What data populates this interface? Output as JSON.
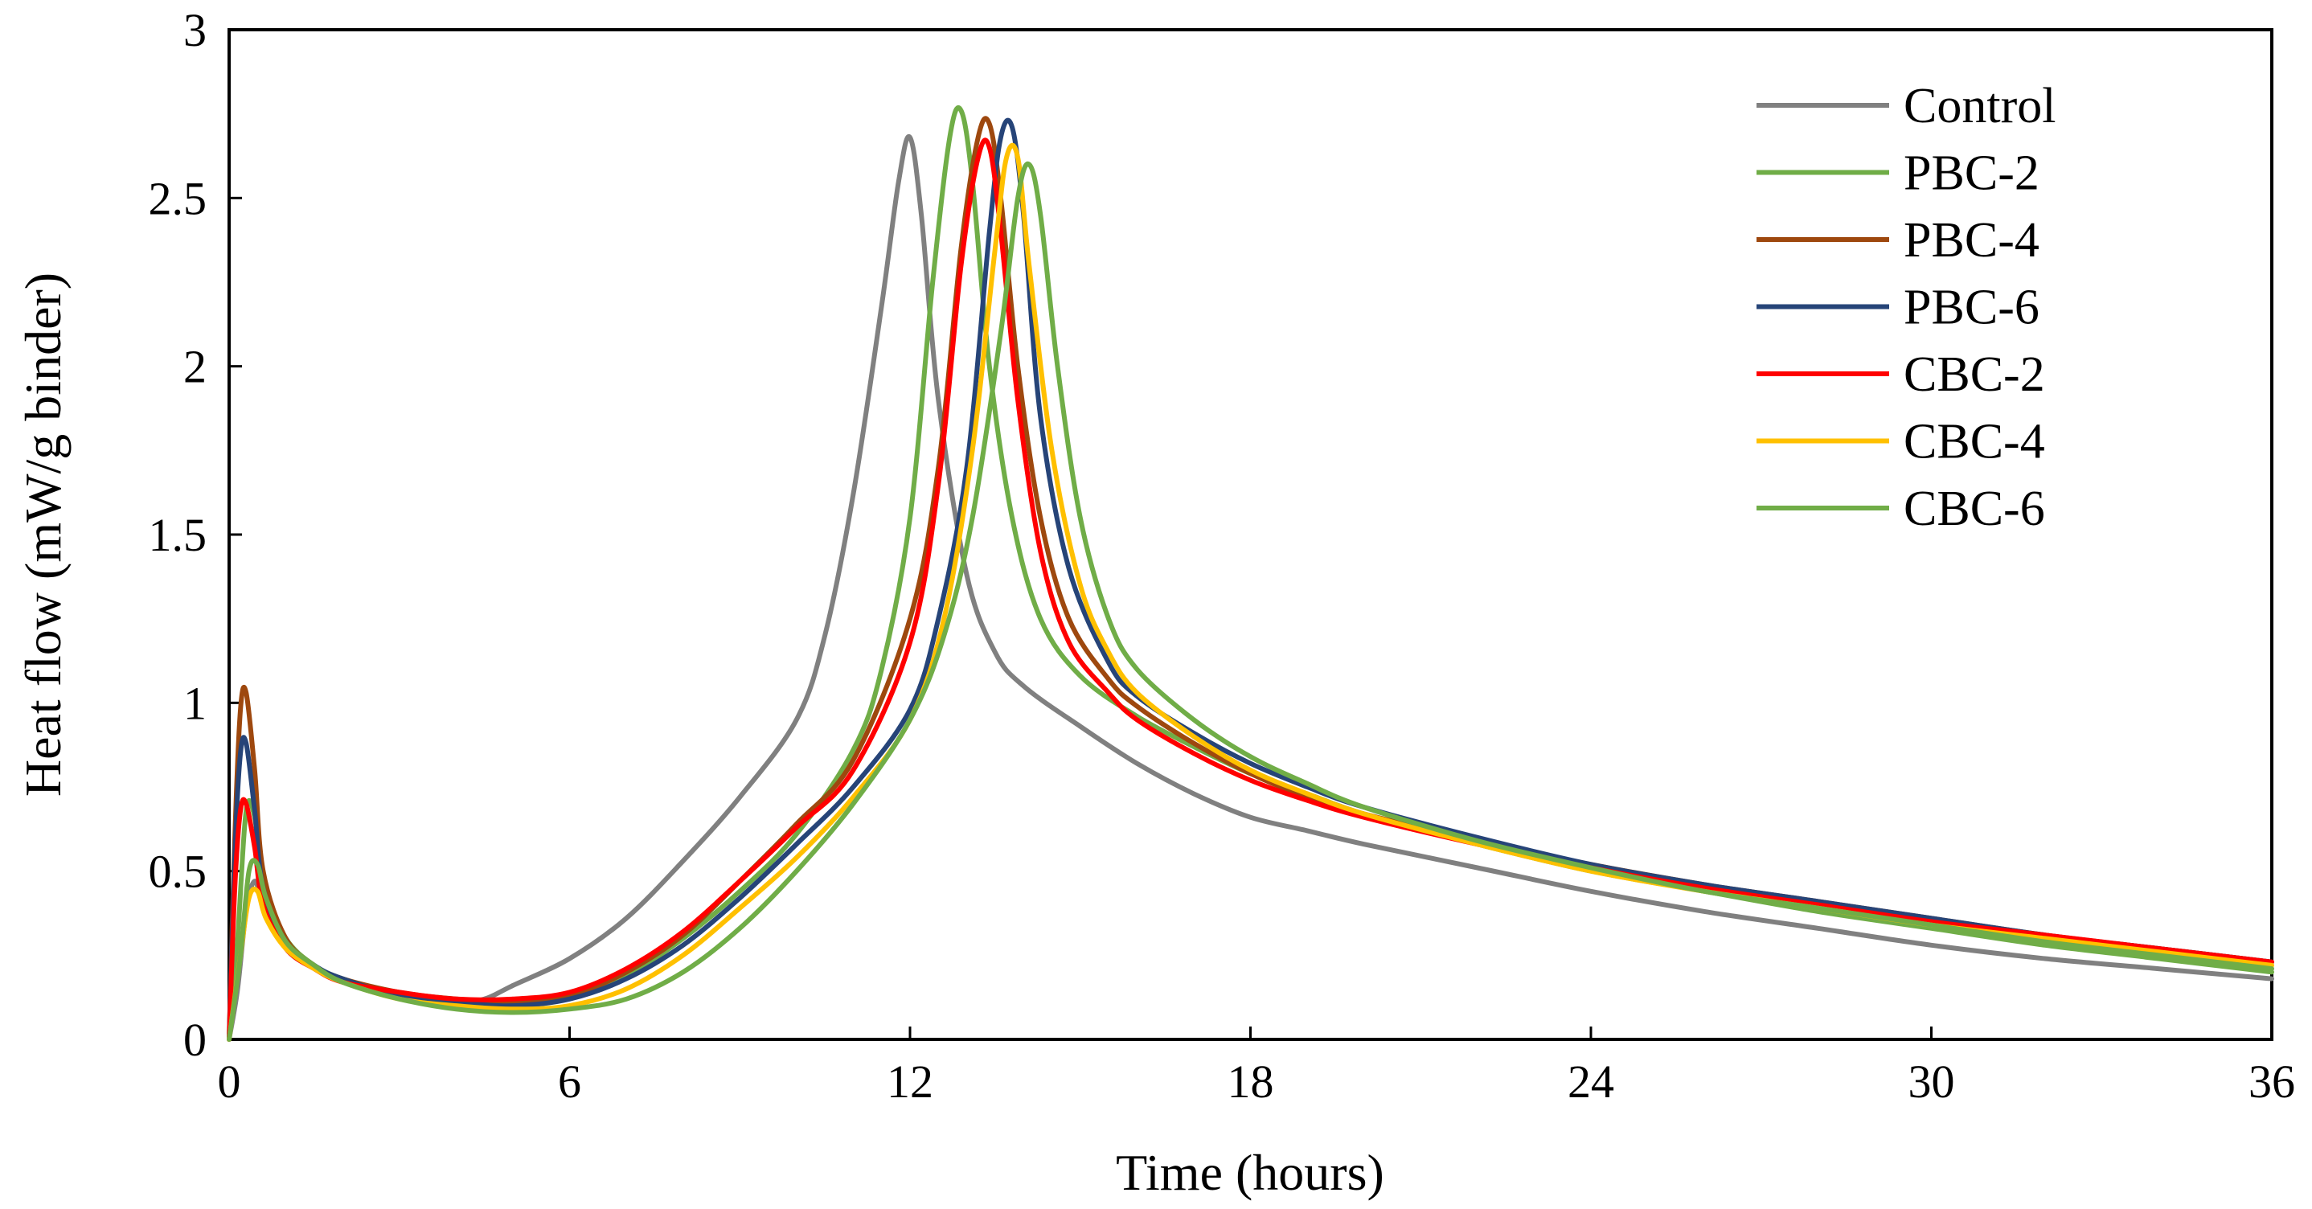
{
  "chart_data": {
    "type": "line",
    "title": "",
    "xlabel": "Time (hours)",
    "ylabel": "Heat flow (mW/g binder)",
    "xlim": [
      0,
      36
    ],
    "ylim": [
      0,
      3
    ],
    "xticks": [
      0,
      6,
      12,
      18,
      24,
      30,
      36
    ],
    "yticks": [
      0,
      0.5,
      1,
      1.5,
      2,
      2.5,
      3
    ],
    "xtick_labels": [
      "0",
      "6",
      "12",
      "18",
      "24",
      "30",
      "36"
    ],
    "ytick_labels": [
      "0",
      "0.5",
      "1",
      "1.5",
      "2",
      "2.5",
      "3"
    ],
    "grid": false,
    "legend_position": "top-right",
    "series": [
      {
        "name": "Control",
        "color": "#808080",
        "x": [
          0,
          0.15,
          0.3,
          0.45,
          0.6,
          1,
          1.5,
          2,
          3,
          4,
          4.5,
          5,
          6,
          7,
          8,
          9,
          10,
          10.5,
          11,
          11.5,
          11.8,
          12.0,
          12.2,
          12.5,
          13,
          13.5,
          14,
          15,
          16,
          17,
          18,
          19,
          20,
          22,
          24,
          26,
          28,
          30,
          32,
          34,
          36
        ],
        "y": [
          0,
          0.15,
          0.38,
          0.47,
          0.4,
          0.27,
          0.21,
          0.17,
          0.13,
          0.11,
          0.12,
          0.16,
          0.24,
          0.36,
          0.53,
          0.72,
          0.95,
          1.2,
          1.62,
          2.18,
          2.55,
          2.68,
          2.45,
          1.9,
          1.38,
          1.15,
          1.05,
          0.93,
          0.82,
          0.73,
          0.66,
          0.62,
          0.58,
          0.51,
          0.44,
          0.38,
          0.33,
          0.28,
          0.24,
          0.21,
          0.18
        ]
      },
      {
        "name": "PBC-2",
        "color": "#70AD47",
        "x": [
          0,
          0.15,
          0.3,
          0.45,
          0.6,
          1,
          1.5,
          2,
          3,
          4,
          5,
          6,
          7,
          8,
          9,
          10,
          11,
          11.5,
          12,
          12.4,
          12.7,
          12.9,
          13.1,
          13.4,
          13.8,
          14.3,
          15,
          16,
          17,
          18,
          19,
          20,
          22,
          24,
          26,
          28,
          30,
          32,
          34,
          36
        ],
        "y": [
          0,
          0.3,
          0.68,
          0.66,
          0.46,
          0.3,
          0.22,
          0.18,
          0.13,
          0.11,
          0.11,
          0.13,
          0.19,
          0.3,
          0.44,
          0.61,
          0.86,
          1.1,
          1.55,
          2.25,
          2.68,
          2.76,
          2.55,
          2.0,
          1.55,
          1.25,
          1.08,
          0.96,
          0.87,
          0.79,
          0.73,
          0.67,
          0.58,
          0.5,
          0.44,
          0.38,
          0.33,
          0.28,
          0.24,
          0.2
        ]
      },
      {
        "name": "PBC-4",
        "color": "#9E480E",
        "x": [
          0,
          0.1,
          0.2,
          0.3,
          0.45,
          0.6,
          1,
          1.5,
          2,
          3,
          4,
          5,
          6,
          7,
          8,
          9,
          10,
          11,
          12,
          12.5,
          12.9,
          13.2,
          13.4,
          13.6,
          13.9,
          14.3,
          14.8,
          15.5,
          16,
          17,
          18,
          19,
          20,
          22,
          24,
          26,
          28,
          30,
          32,
          34,
          36
        ],
        "y": [
          0,
          0.6,
          0.98,
          1.03,
          0.8,
          0.5,
          0.3,
          0.22,
          0.18,
          0.14,
          0.12,
          0.11,
          0.13,
          0.2,
          0.31,
          0.47,
          0.64,
          0.83,
          1.25,
          1.7,
          2.35,
          2.68,
          2.72,
          2.5,
          2.0,
          1.55,
          1.25,
          1.07,
          0.99,
          0.88,
          0.79,
          0.72,
          0.67,
          0.59,
          0.52,
          0.46,
          0.41,
          0.36,
          0.31,
          0.27,
          0.23
        ]
      },
      {
        "name": "PBC-6",
        "color": "#264478",
        "x": [
          0,
          0.1,
          0.2,
          0.3,
          0.45,
          0.6,
          1,
          1.5,
          2,
          3,
          4,
          5,
          6,
          7,
          8,
          9,
          10,
          11,
          12,
          12.5,
          13,
          13.4,
          13.6,
          13.8,
          14.0,
          14.3,
          14.8,
          15.5,
          16,
          17,
          18,
          19,
          20,
          22,
          24,
          26,
          28,
          30,
          32,
          34,
          36
        ],
        "y": [
          0,
          0.55,
          0.85,
          0.88,
          0.68,
          0.45,
          0.29,
          0.22,
          0.18,
          0.13,
          0.11,
          0.1,
          0.12,
          0.18,
          0.28,
          0.42,
          0.58,
          0.75,
          0.98,
          1.25,
          1.7,
          2.4,
          2.68,
          2.71,
          2.45,
          1.85,
          1.4,
          1.12,
          1.02,
          0.91,
          0.82,
          0.75,
          0.69,
          0.6,
          0.52,
          0.46,
          0.41,
          0.36,
          0.31,
          0.27,
          0.23
        ]
      },
      {
        "name": "CBC-2",
        "color": "#FF0000",
        "x": [
          0,
          0.1,
          0.2,
          0.3,
          0.45,
          0.6,
          1,
          1.5,
          2,
          3,
          4,
          5,
          6,
          7,
          8,
          9,
          10,
          11,
          12,
          12.5,
          12.9,
          13.2,
          13.4,
          13.6,
          13.9,
          14.3,
          14.8,
          15.5,
          16,
          17,
          18,
          19,
          20,
          22,
          24,
          26,
          28,
          30,
          32,
          34,
          36
        ],
        "y": [
          0,
          0.45,
          0.68,
          0.7,
          0.57,
          0.4,
          0.27,
          0.21,
          0.17,
          0.14,
          0.12,
          0.12,
          0.14,
          0.21,
          0.32,
          0.47,
          0.63,
          0.8,
          1.18,
          1.65,
          2.3,
          2.62,
          2.65,
          2.4,
          1.9,
          1.45,
          1.18,
          1.03,
          0.95,
          0.85,
          0.77,
          0.71,
          0.66,
          0.58,
          0.51,
          0.45,
          0.4,
          0.35,
          0.31,
          0.27,
          0.23
        ]
      },
      {
        "name": "CBC-4",
        "color": "#FFC000",
        "x": [
          0,
          0.2,
          0.35,
          0.5,
          0.65,
          1,
          1.5,
          2,
          3,
          4,
          5,
          6,
          7,
          8,
          9,
          10,
          11,
          12,
          12.6,
          13.1,
          13.5,
          13.7,
          13.9,
          14.1,
          14.5,
          15,
          15.5,
          16,
          17,
          18,
          19,
          20,
          22,
          24,
          26,
          28,
          30,
          32,
          34,
          36
        ],
        "y": [
          0,
          0.25,
          0.42,
          0.44,
          0.36,
          0.27,
          0.21,
          0.17,
          0.12,
          0.1,
          0.09,
          0.1,
          0.15,
          0.25,
          0.39,
          0.54,
          0.72,
          0.95,
          1.25,
          1.75,
          2.35,
          2.62,
          2.62,
          2.3,
          1.75,
          1.35,
          1.15,
          1.03,
          0.9,
          0.8,
          0.73,
          0.67,
          0.58,
          0.5,
          0.44,
          0.39,
          0.34,
          0.3,
          0.26,
          0.22
        ]
      },
      {
        "name": "CBC-6",
        "color": "#70AD47",
        "x": [
          0,
          0.2,
          0.35,
          0.5,
          0.65,
          1,
          1.5,
          2,
          3,
          4,
          5,
          6,
          7,
          8,
          9,
          10,
          11,
          12,
          12.6,
          13.1,
          13.6,
          13.9,
          14.1,
          14.3,
          14.6,
          15,
          15.5,
          16,
          17,
          18,
          19,
          20,
          22,
          24,
          26,
          28,
          30,
          32,
          34,
          36
        ],
        "y": [
          0,
          0.25,
          0.5,
          0.52,
          0.42,
          0.29,
          0.22,
          0.17,
          0.12,
          0.09,
          0.08,
          0.09,
          0.12,
          0.2,
          0.33,
          0.5,
          0.7,
          0.95,
          1.2,
          1.55,
          2.1,
          2.5,
          2.6,
          2.45,
          2.0,
          1.55,
          1.25,
          1.1,
          0.95,
          0.84,
          0.76,
          0.69,
          0.59,
          0.51,
          0.44,
          0.39,
          0.34,
          0.29,
          0.25,
          0.21
        ]
      }
    ]
  }
}
